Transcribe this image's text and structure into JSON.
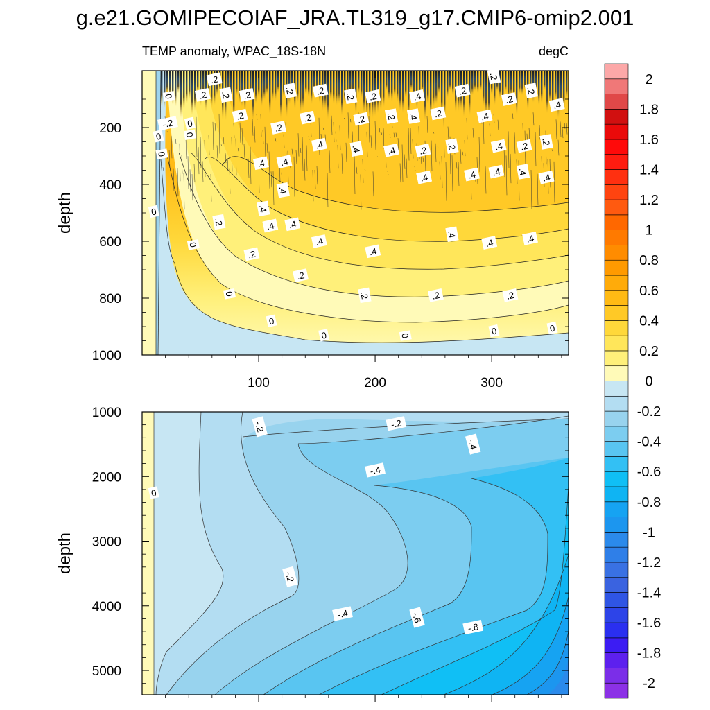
{
  "chart_data": [
    {
      "type": "heatmap",
      "title": "g.e21.GOMIPECOIAF_JRA.TL319_g17.CMIP6-omip2.001",
      "subtitle_left": "TEMP anomaly, WPAC_18S-18N",
      "subtitle_right": "degC",
      "xlabel": "",
      "ylabel": "depth",
      "xlim": [
        0,
        366
      ],
      "ylim": [
        0,
        1000
      ],
      "x_ticks": [
        {
          "value": 100,
          "label": "100"
        },
        {
          "value": 200,
          "label": "200"
        },
        {
          "value": 300,
          "label": "300"
        }
      ],
      "y_ticks": [
        {
          "value": 200,
          "label": "200"
        },
        {
          "value": 400,
          "label": "400"
        },
        {
          "value": 600,
          "label": "600"
        },
        {
          "value": 800,
          "label": "800"
        },
        {
          "value": 1000,
          "label": "1000"
        }
      ],
      "contour_labels": [
        {
          "x": 23,
          "y": 90,
          "text": "0"
        },
        {
          "x": 22,
          "y": 185,
          "text": "-.2"
        },
        {
          "x": 14,
          "y": 230,
          "text": "0"
        },
        {
          "x": 17,
          "y": 293,
          "text": "0"
        },
        {
          "x": 10,
          "y": 495,
          "text": "0"
        },
        {
          "x": 41,
          "y": 185,
          "text": "0"
        },
        {
          "x": 41,
          "y": 225,
          "text": "0"
        },
        {
          "x": 52,
          "y": 85,
          "text": ".2"
        },
        {
          "x": 62,
          "y": 30,
          "text": ".2"
        },
        {
          "x": 72,
          "y": 85,
          "text": ".2"
        },
        {
          "x": 90,
          "y": 85,
          "text": ".2"
        },
        {
          "x": 84,
          "y": 158,
          "text": ".2"
        },
        {
          "x": 127,
          "y": 70,
          "text": ".2"
        },
        {
          "x": 142,
          "y": 165,
          "text": ".2"
        },
        {
          "x": 153,
          "y": 70,
          "text": ".2"
        },
        {
          "x": 179,
          "y": 90,
          "text": ".2"
        },
        {
          "x": 198,
          "y": 90,
          "text": ".2"
        },
        {
          "x": 188,
          "y": 170,
          "text": ".2"
        },
        {
          "x": 214,
          "y": 160,
          "text": ".2"
        },
        {
          "x": 117,
          "y": 200,
          "text": ".2"
        },
        {
          "x": 236,
          "y": 90,
          "text": ".4"
        },
        {
          "x": 233,
          "y": 160,
          "text": ".4"
        },
        {
          "x": 254,
          "y": 150,
          "text": ".2"
        },
        {
          "x": 275,
          "y": 70,
          "text": ".2"
        },
        {
          "x": 302,
          "y": 20,
          "text": ".2"
        },
        {
          "x": 294,
          "y": 160,
          "text": ".4"
        },
        {
          "x": 315,
          "y": 100,
          "text": ".2"
        },
        {
          "x": 334,
          "y": 70,
          "text": ".2"
        },
        {
          "x": 356,
          "y": 120,
          "text": ".4"
        },
        {
          "x": 152,
          "y": 260,
          "text": ".4"
        },
        {
          "x": 184,
          "y": 275,
          "text": ".4"
        },
        {
          "x": 214,
          "y": 280,
          "text": ".4"
        },
        {
          "x": 241,
          "y": 280,
          "text": ".2"
        },
        {
          "x": 266,
          "y": 265,
          "text": ".2"
        },
        {
          "x": 306,
          "y": 265,
          "text": ".4"
        },
        {
          "x": 328,
          "y": 265,
          "text": ".2"
        },
        {
          "x": 347,
          "y": 250,
          "text": ".2"
        },
        {
          "x": 102,
          "y": 325,
          "text": ".4"
        },
        {
          "x": 122,
          "y": 320,
          "text": ".4"
        },
        {
          "x": 121,
          "y": 420,
          "text": ".4"
        },
        {
          "x": 283,
          "y": 365,
          "text": ".4"
        },
        {
          "x": 304,
          "y": 355,
          "text": ".4"
        },
        {
          "x": 327,
          "y": 355,
          "text": ".4"
        },
        {
          "x": 347,
          "y": 375,
          "text": ".4"
        },
        {
          "x": 242,
          "y": 375,
          "text": ".4"
        },
        {
          "x": 104,
          "y": 485,
          "text": ".4"
        },
        {
          "x": 110,
          "y": 545,
          "text": ".4"
        },
        {
          "x": 129,
          "y": 540,
          "text": ".4"
        },
        {
          "x": 66,
          "y": 532,
          "text": ".2"
        },
        {
          "x": 152,
          "y": 600,
          "text": ".4"
        },
        {
          "x": 198,
          "y": 635,
          "text": ".4"
        },
        {
          "x": 266,
          "y": 575,
          "text": ".4"
        },
        {
          "x": 298,
          "y": 605,
          "text": ".4"
        },
        {
          "x": 333,
          "y": 590,
          "text": ".4"
        },
        {
          "x": 44,
          "y": 612,
          "text": "0"
        },
        {
          "x": 94,
          "y": 645,
          "text": ".2"
        },
        {
          "x": 136,
          "y": 720,
          "text": ".2"
        },
        {
          "x": 191,
          "y": 790,
          "text": ".2"
        },
        {
          "x": 252,
          "y": 790,
          "text": ".2"
        },
        {
          "x": 316,
          "y": 790,
          "text": ".2"
        },
        {
          "x": 75,
          "y": 785,
          "text": "0"
        },
        {
          "x": 111,
          "y": 880,
          "text": "0"
        },
        {
          "x": 156,
          "y": 930,
          "text": "0"
        },
        {
          "x": 226,
          "y": 932,
          "text": "0"
        },
        {
          "x": 302,
          "y": 915,
          "text": "0"
        },
        {
          "x": 352,
          "y": 905,
          "text": "0"
        }
      ]
    },
    {
      "type": "heatmap",
      "xlabel": "",
      "ylabel": "depth",
      "xlim": [
        0,
        366
      ],
      "ylim": [
        1000,
        5375
      ],
      "y_ticks": [
        {
          "value": 1000,
          "label": "1000"
        },
        {
          "value": 2000,
          "label": "2000"
        },
        {
          "value": 3000,
          "label": "3000"
        },
        {
          "value": 4000,
          "label": "4000"
        },
        {
          "value": 5000,
          "label": "5000"
        }
      ],
      "contour_labels": [
        {
          "x": 10,
          "y": 2250,
          "text": "0"
        },
        {
          "x": 101,
          "y": 1230,
          "text": "-.2"
        },
        {
          "x": 218,
          "y": 1180,
          "text": "-.2"
        },
        {
          "x": 284,
          "y": 1500,
          "text": "-.4"
        },
        {
          "x": 200,
          "y": 1900,
          "text": "-.4"
        },
        {
          "x": 127,
          "y": 3550,
          "text": "-.2"
        },
        {
          "x": 172,
          "y": 4120,
          "text": "-.4"
        },
        {
          "x": 236,
          "y": 4180,
          "text": "-.6"
        },
        {
          "x": 284,
          "y": 4330,
          "text": "-.8"
        }
      ]
    },
    {
      "type": "colorbar",
      "levels": [
        -2.1,
        -2.0,
        -1.9,
        -1.8,
        -1.7,
        -1.6,
        -1.5,
        -1.4,
        -1.3,
        -1.2,
        -1.1,
        -1.0,
        -0.9,
        -0.8,
        -0.7,
        -0.6,
        -0.5,
        -0.4,
        -0.3,
        -0.2,
        -0.1,
        0,
        0.1,
        0.2,
        0.3,
        0.4,
        0.5,
        0.6,
        0.7,
        0.8,
        0.9,
        1.0,
        1.1,
        1.2,
        1.3,
        1.4,
        1.5,
        1.6,
        1.7,
        1.8,
        1.9,
        2.0,
        2.1
      ],
      "colors": [
        "#8c31e6",
        "#7b2ee8",
        "#5d20ee",
        "#3c1cf3",
        "#2a2ff0",
        "#2d44e8",
        "#2f55e4",
        "#3a63e0",
        "#3971e3",
        "#2f7fe8",
        "#2b8aeb",
        "#1c96ef",
        "#16a3f2",
        "#0fb4f3",
        "#10bff5",
        "#33c0f4",
        "#59c5f1",
        "#7ccdf0",
        "#98d3ee",
        "#b3ddf2",
        "#c7e6f3",
        "#fffab8",
        "#fff07a",
        "#ffe65a",
        "#ffd83a",
        "#ffc926",
        "#ffba14",
        "#ffab0a",
        "#ff9a00",
        "#ff8c00",
        "#ff7a00",
        "#ff6800",
        "#ff5a10",
        "#ff4410",
        "#ff3010",
        "#ff1c10",
        "#ff0a0a",
        "#ea0a0a",
        "#d11010",
        "#e04848",
        "#f07878",
        "#fca8a8"
      ],
      "tick_labels": [
        {
          "value": 2.0,
          "label": "2"
        },
        {
          "value": 1.8,
          "label": "1.8"
        },
        {
          "value": 1.6,
          "label": "1.6"
        },
        {
          "value": 1.4,
          "label": "1.4"
        },
        {
          "value": 1.2,
          "label": "1.2"
        },
        {
          "value": 1.0,
          "label": "1"
        },
        {
          "value": 0.8,
          "label": "0.8"
        },
        {
          "value": 0.6,
          "label": "0.6"
        },
        {
          "value": 0.4,
          "label": "0.4"
        },
        {
          "value": 0.2,
          "label": "0.2"
        },
        {
          "value": 0,
          "label": "0"
        },
        {
          "value": -0.2,
          "label": "-0.2"
        },
        {
          "value": -0.4,
          "label": "-0.4"
        },
        {
          "value": -0.6,
          "label": "-0.6"
        },
        {
          "value": -0.8,
          "label": "-0.8"
        },
        {
          "value": -1.0,
          "label": "-1"
        },
        {
          "value": -1.2,
          "label": "-1.2"
        },
        {
          "value": -1.4,
          "label": "-1.4"
        },
        {
          "value": -1.6,
          "label": "-1.6"
        },
        {
          "value": -1.8,
          "label": "-1.8"
        },
        {
          "value": -2.0,
          "label": "-2"
        }
      ]
    }
  ]
}
